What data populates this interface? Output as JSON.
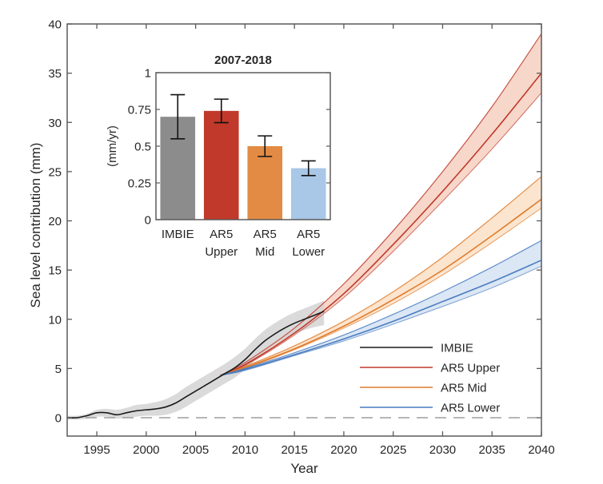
{
  "chart_data": [
    {
      "id": "main",
      "type": "line",
      "title": "",
      "xlabel": "Year",
      "ylabel": "Sea level contribution (mm)",
      "xlim": [
        1992,
        2040
      ],
      "ylim": [
        -2,
        40
      ],
      "xticks": [
        1995,
        2000,
        2005,
        2010,
        2015,
        2020,
        2025,
        2030,
        2035,
        2040
      ],
      "yticks": [
        0,
        5,
        10,
        15,
        20,
        25,
        30,
        35,
        40
      ],
      "zero_line": "dashed",
      "grid": false,
      "legend_position": "bottom-right",
      "series": [
        {
          "name": "IMBIE",
          "color": "#1a1a1a",
          "band_color": "#d3d3d3",
          "x": [
            1992,
            1993,
            1994,
            1995,
            1996,
            1997,
            1998,
            1999,
            2000,
            2001,
            2002,
            2003,
            2004,
            2005,
            2006,
            2007,
            2008,
            2009,
            2010,
            2011,
            2012,
            2013,
            2014,
            2015,
            2016,
            2017,
            2018
          ],
          "y": [
            0,
            0,
            0.2,
            0.5,
            0.5,
            0.3,
            0.5,
            0.7,
            0.8,
            0.9,
            1.1,
            1.5,
            2.1,
            2.7,
            3.3,
            3.9,
            4.5,
            5.1,
            5.9,
            6.9,
            7.8,
            8.5,
            9.1,
            9.6,
            10.0,
            10.4,
            10.8
          ],
          "lower": [
            -0.2,
            -0.2,
            -0.1,
            0.1,
            0.1,
            -0.1,
            0.0,
            0.1,
            0.2,
            0.2,
            0.3,
            0.6,
            1.1,
            1.7,
            2.3,
            2.9,
            3.5,
            4.1,
            4.9,
            5.8,
            6.7,
            7.4,
            8.0,
            8.5,
            8.9,
            9.2,
            9.4
          ],
          "upper": [
            0.2,
            0.2,
            0.4,
            0.8,
            0.9,
            0.8,
            1.0,
            1.3,
            1.4,
            1.6,
            1.9,
            2.4,
            3.1,
            3.7,
            4.3,
            4.9,
            5.5,
            6.2,
            7.0,
            8.0,
            8.9,
            9.6,
            10.2,
            10.7,
            11.1,
            11.5,
            11.9
          ]
        },
        {
          "name": "AR5 Upper",
          "color": "#c0392b",
          "band_color": "#f4c9b8",
          "x": [
            2007.5,
            2010,
            2015,
            2020,
            2025,
            2030,
            2035,
            2040
          ],
          "y": [
            4.3,
            5.4,
            8.6,
            12.6,
            17.6,
            23.0,
            28.8,
            35.0
          ],
          "lower": [
            4.3,
            5.3,
            8.4,
            12.2,
            16.9,
            22.0,
            27.3,
            33.0
          ],
          "upper": [
            4.3,
            5.6,
            9.1,
            13.6,
            19.0,
            25.0,
            31.6,
            39.0
          ]
        },
        {
          "name": "AR5 Mid",
          "color": "#e07b2a",
          "band_color": "#fbdcbf",
          "x": [
            2007.5,
            2010,
            2015,
            2020,
            2025,
            2030,
            2035,
            2040
          ],
          "y": [
            4.3,
            5.1,
            7.0,
            9.3,
            12.0,
            15.0,
            18.5,
            22.2
          ],
          "lower": [
            4.3,
            5.0,
            6.9,
            9.1,
            11.6,
            14.5,
            17.8,
            21.3
          ],
          "upper": [
            4.3,
            5.2,
            7.3,
            9.8,
            12.8,
            16.3,
            20.3,
            24.5
          ]
        },
        {
          "name": "AR5 Lower",
          "color": "#4a7cc0",
          "band_color": "#cfdff2",
          "x": [
            2007.5,
            2010,
            2015,
            2020,
            2025,
            2030,
            2035,
            2040
          ],
          "y": [
            4.3,
            4.9,
            6.4,
            8.0,
            9.8,
            11.8,
            13.8,
            16.0
          ],
          "lower": [
            4.3,
            4.8,
            6.3,
            7.8,
            9.5,
            11.3,
            13.2,
            15.4
          ],
          "upper": [
            4.3,
            5.0,
            6.6,
            8.4,
            10.5,
            12.8,
            15.3,
            18.0
          ]
        }
      ]
    },
    {
      "id": "inset",
      "type": "bar",
      "title": "2007-2018",
      "xlabel": "",
      "ylabel": "(mm/yr)",
      "ylim": [
        0,
        1
      ],
      "yticks": [
        0,
        0.25,
        0.5,
        0.75,
        1
      ],
      "ytick_labels": [
        "0",
        "0.25",
        "0.5",
        "0.75",
        "1"
      ],
      "categories": [
        {
          "line1": "IMBIE",
          "line2": ""
        },
        {
          "line1": "AR5",
          "line2": "Upper"
        },
        {
          "line1": "AR5",
          "line2": "Mid"
        },
        {
          "line1": "AR5",
          "line2": "Lower"
        }
      ],
      "values": [
        0.7,
        0.74,
        0.5,
        0.35
      ],
      "error_low": [
        0.55,
        0.66,
        0.43,
        0.3
      ],
      "error_high": [
        0.85,
        0.82,
        0.57,
        0.4
      ],
      "colors": [
        "#8c8c8c",
        "#c0392b",
        "#e38b45",
        "#a9c7e6"
      ]
    }
  ]
}
